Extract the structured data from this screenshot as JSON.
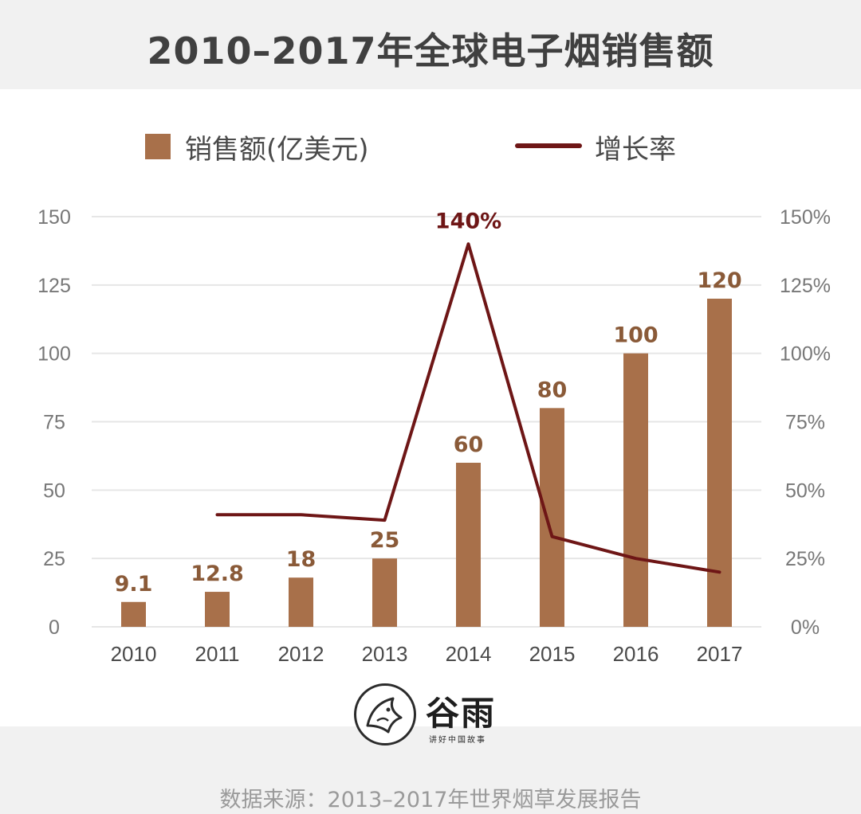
{
  "title": "2010–2017年全球电子烟销售额",
  "legend": {
    "bar_label": "销售额(亿美元)",
    "line_label": "增长率"
  },
  "colors": {
    "bar": "#a8704a",
    "line": "#6e1616",
    "grid": "#e6e6e6",
    "tick": "#777777",
    "data_label": "#8a5a38"
  },
  "chart_data": {
    "type": "bar",
    "categories": [
      "2010",
      "2011",
      "2012",
      "2013",
      "2014",
      "2015",
      "2016",
      "2017"
    ],
    "series": [
      {
        "name": "销售额(亿美元)",
        "type": "bar",
        "axis": "left",
        "values": [
          9.1,
          12.8,
          18,
          25,
          60,
          80,
          100,
          120
        ],
        "labels": [
          "9.1",
          "12.8",
          "18",
          "25",
          "60",
          "80",
          "100",
          "120"
        ]
      },
      {
        "name": "增长率",
        "type": "line",
        "axis": "right",
        "values": [
          null,
          41,
          41,
          39,
          140,
          33,
          25,
          20
        ],
        "labels": [
          "",
          "",
          "",
          "",
          "140%",
          "",
          "",
          ""
        ]
      }
    ],
    "y_left": {
      "min": 0,
      "max": 150,
      "ticks": [
        "0",
        "25",
        "50",
        "75",
        "100",
        "125",
        "150"
      ]
    },
    "y_right": {
      "min": 0,
      "max": 150,
      "ticks": [
        "0%",
        "25%",
        "50%",
        "75%",
        "100%",
        "125%",
        "150%"
      ]
    },
    "grid": true,
    "legend_position": "top"
  },
  "logo": {
    "name": "谷雨",
    "tagline": "讲好中国故事",
    "icon": "bird-icon"
  },
  "source": "数据来源：2013–2017年世界烟草发展报告"
}
